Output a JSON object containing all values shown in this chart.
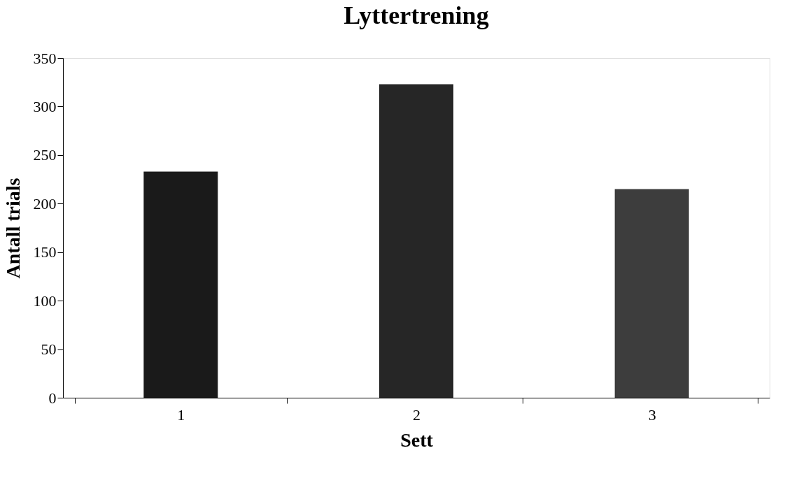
{
  "chart_data": {
    "type": "bar",
    "title": "Lyttertrening",
    "xlabel": "Sett",
    "ylabel": "Antall trials",
    "categories": [
      "1",
      "2",
      "3"
    ],
    "values": [
      233,
      323,
      215
    ],
    "colors": [
      "#1a1a1a",
      "#262626",
      "#3d3d3d"
    ],
    "ylim": [
      0,
      350
    ],
    "yticks": [
      0,
      50,
      100,
      150,
      200,
      250,
      300,
      350
    ],
    "grid": false,
    "legend": false
  }
}
